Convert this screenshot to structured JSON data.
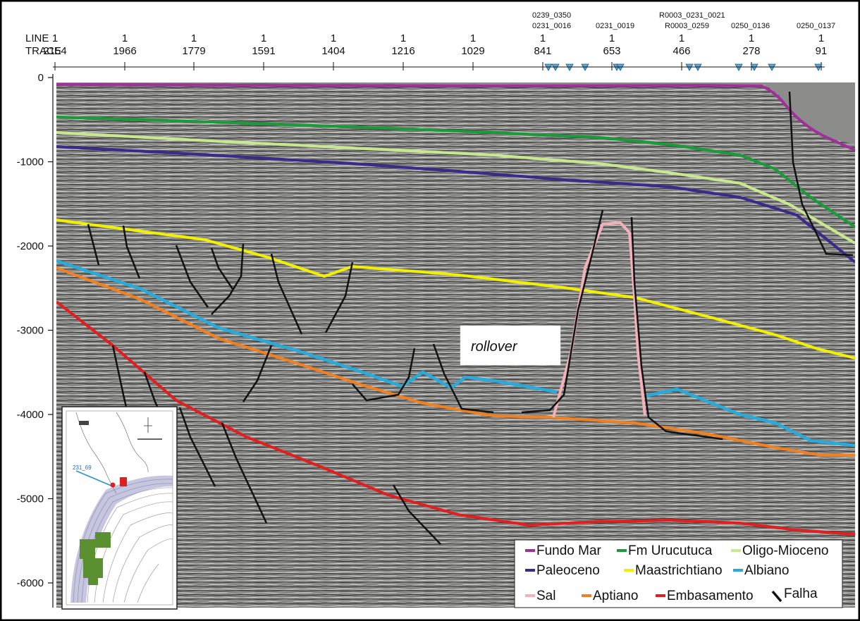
{
  "header": {
    "line_label": "LINE",
    "trace_label": "TRACE",
    "columns": [
      {
        "line": "1",
        "trace": "2154"
      },
      {
        "line": "1",
        "trace": "1966"
      },
      {
        "line": "1",
        "trace": "1779"
      },
      {
        "line": "1",
        "trace": "1591"
      },
      {
        "line": "1",
        "trace": "1404"
      },
      {
        "line": "1",
        "trace": "1216"
      },
      {
        "line": "1",
        "trace": "1029"
      },
      {
        "line": "1",
        "trace": "841"
      },
      {
        "line": "1",
        "trace": "653"
      },
      {
        "line": "1",
        "trace": "466"
      },
      {
        "line": "1",
        "trace": "278"
      },
      {
        "line": "1",
        "trace": "91"
      }
    ],
    "intersection_labels": [
      "0239_0350",
      "0231_0016",
      "0231_0019",
      "R0003_0231_0021",
      "R0003_0259",
      "0250_0136",
      "0250_0137"
    ]
  },
  "depth_axis": {
    "ticks": [
      "0",
      "-1000",
      "-2000",
      "-3000",
      "-4000",
      "-5000",
      "-6000"
    ]
  },
  "annotation": {
    "rollover": "rollover"
  },
  "inset_map": {
    "line_label": "231_69"
  },
  "legend": [
    {
      "label": "Fundo Mar",
      "color": "#a0309a"
    },
    {
      "label": "Fm Urucutuca",
      "color": "#1a9a3a"
    },
    {
      "label": "Oligo-Mioceno",
      "color": "#c8e890"
    },
    {
      "label": "Paleoceno",
      "color": "#3a2a8a"
    },
    {
      "label": "Maastrichtiano",
      "color": "#f0f000"
    },
    {
      "label": "Albiano",
      "color": "#2aaad8"
    },
    {
      "label": "Sal",
      "color": "#f4b0b8"
    },
    {
      "label": "Aptiano",
      "color": "#f08020"
    },
    {
      "label": "Embasamento",
      "color": "#e02020"
    },
    {
      "label": "Falha",
      "color": "#111111"
    }
  ]
}
